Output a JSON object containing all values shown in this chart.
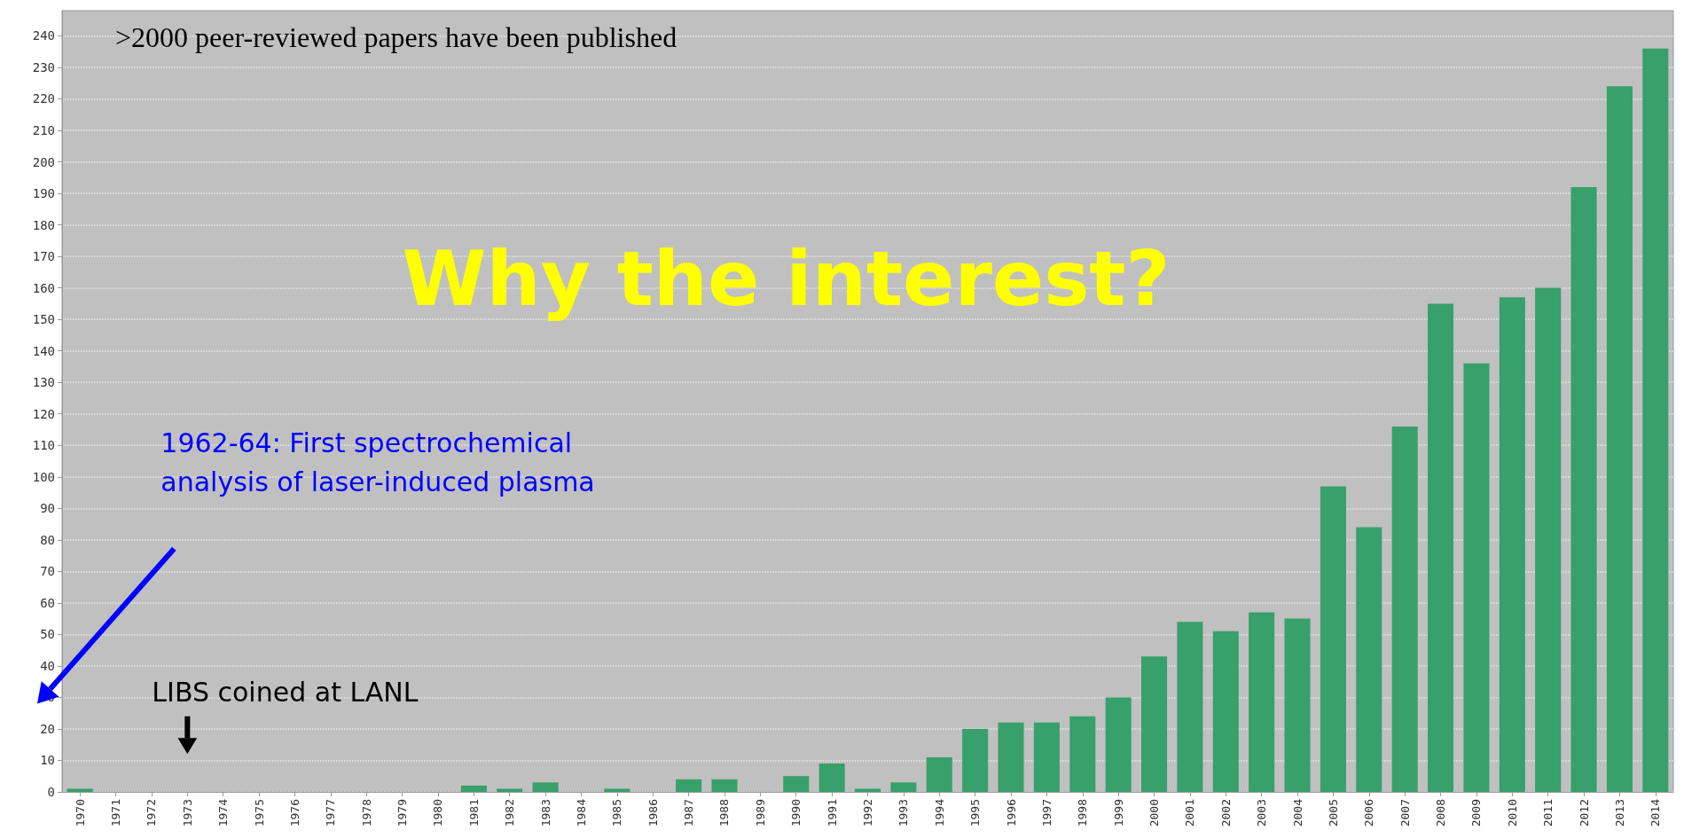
{
  "chart_data": {
    "type": "bar",
    "categories": [
      "1970",
      "1971",
      "1972",
      "1973",
      "1974",
      "1975",
      "1976",
      "1977",
      "1978",
      "1979",
      "1980",
      "1981",
      "1982",
      "1983",
      "1984",
      "1985",
      "1986",
      "1987",
      "1988",
      "1989",
      "1990",
      "1991",
      "1992",
      "1993",
      "1994",
      "1995",
      "1996",
      "1997",
      "1998",
      "1999",
      "2000",
      "2001",
      "2002",
      "2003",
      "2004",
      "2005",
      "2006",
      "2007",
      "2008",
      "2009",
      "2010",
      "2011",
      "2012",
      "2013",
      "2014"
    ],
    "values": [
      1,
      0,
      0,
      0,
      0,
      0,
      0,
      0,
      0,
      0,
      0,
      2,
      1,
      3,
      0,
      1,
      0,
      4,
      4,
      0,
      5,
      9,
      1,
      3,
      11,
      20,
      22,
      22,
      24,
      30,
      43,
      54,
      51,
      57,
      55,
      97,
      84,
      116,
      155,
      136,
      157,
      160,
      192,
      224,
      236
    ],
    "color": "#38a06a",
    "ylim": [
      0,
      248
    ],
    "yticks": [
      0,
      10,
      20,
      30,
      40,
      50,
      60,
      70,
      80,
      90,
      100,
      110,
      120,
      130,
      140,
      150,
      160,
      170,
      180,
      190,
      200,
      210,
      220,
      230,
      240
    ],
    "grid": "y",
    "annotations": [
      ">2000 peer-reviewed papers have been published",
      "Why the interest?",
      "1962-64: First spectrochemical\nanalysis of laser-induced plasma",
      "LIBS coined at LANL"
    ]
  }
}
